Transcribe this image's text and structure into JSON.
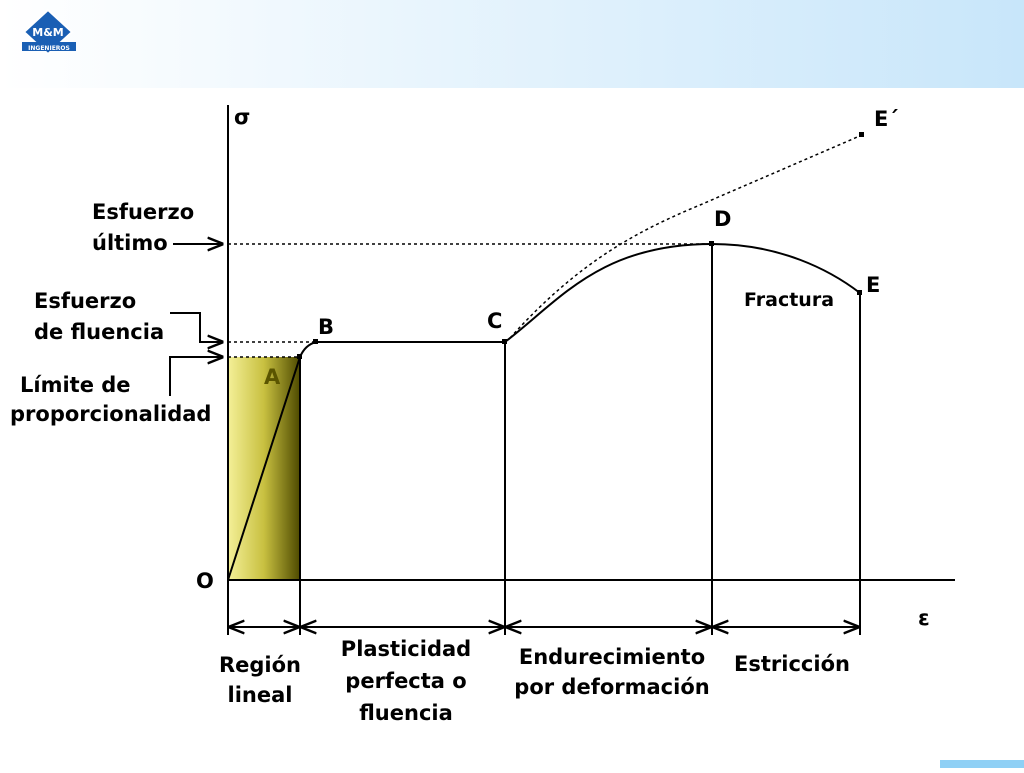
{
  "header": {
    "logo": "M&M",
    "logo_subtitle": "INGENIEROS"
  },
  "diagram": {
    "y_axis_label": "σ",
    "x_axis_label": "ε",
    "origin_label": "O",
    "points": {
      "A": "A",
      "B": "B",
      "C": "C",
      "D": "D",
      "E": "E",
      "E_prime": "E´"
    },
    "fracture_label": "Fractura",
    "left_labels": {
      "ultimate_stress": [
        "Esfuerzo",
        "último"
      ],
      "yield_stress": [
        "Esfuerzo",
        "de fluencia"
      ],
      "proportional_limit": [
        "Límite de",
        "proporcionalidad"
      ]
    },
    "regions": [
      [
        "Región",
        "lineal"
      ],
      [
        "Plasticidad",
        "perfecta  o",
        "fluencia"
      ],
      [
        "Endurecimiento",
        "por deformación"
      ],
      [
        "Estricción"
      ]
    ]
  }
}
